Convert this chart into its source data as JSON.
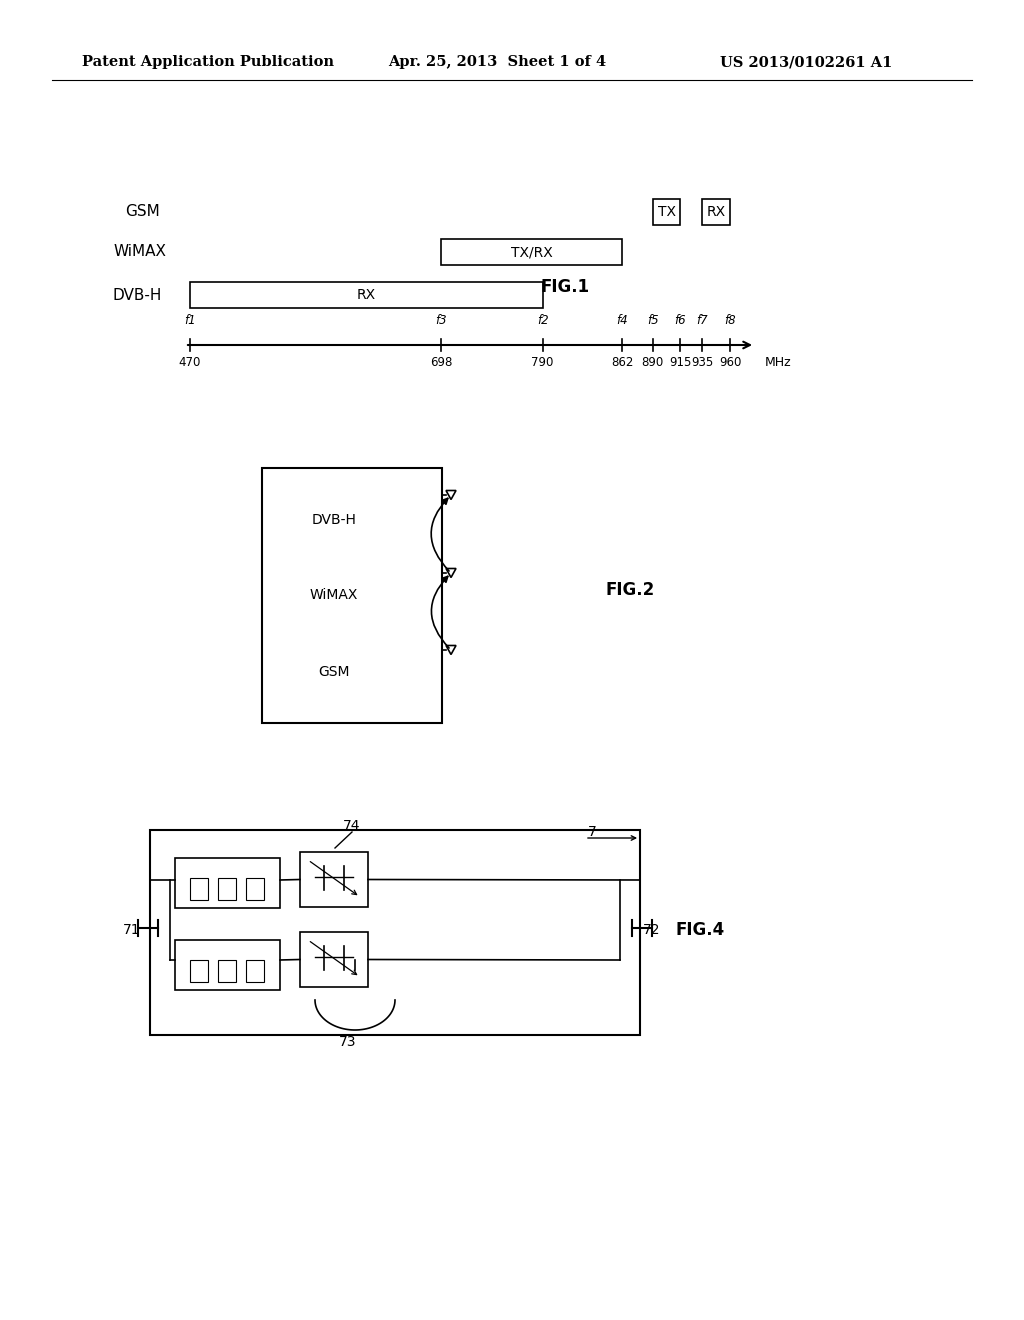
{
  "header_left": "Patent Application Publication",
  "header_mid": "Apr. 25, 2013  Sheet 1 of 4",
  "header_right": "US 2013/0102261 A1",
  "bg_color": "#ffffff",
  "fig1_title": "FIG.1",
  "fig2_title": "FIG.2",
  "fig4_title": "FIG.4",
  "freqs": [
    470,
    698,
    790,
    862,
    890,
    915,
    935,
    960
  ],
  "freq_names": [
    "470",
    "698",
    "790",
    "862",
    "890",
    "915",
    "935",
    "960"
  ],
  "f_labels": [
    "f1",
    "f3",
    "f2",
    "f4",
    "f5",
    "f6",
    "f7",
    "f8"
  ],
  "modules": [
    "DVB-H",
    "WiMAX",
    "GSM"
  ]
}
